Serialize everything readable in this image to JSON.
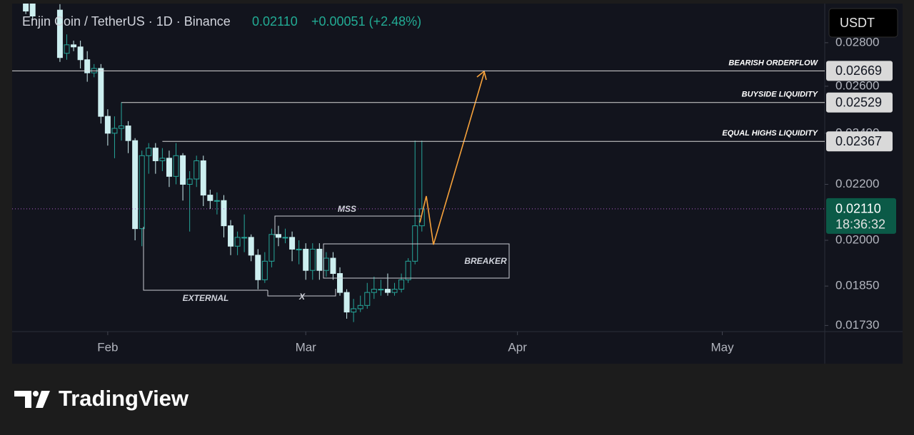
{
  "header": {
    "symbol": "Enjin Coin / TetherUS · 1D · Binance",
    "price": "0.02110",
    "change": "+0.00051 (+2.48%)"
  },
  "currency": "USDT",
  "brand": "TradingView",
  "chart_data": {
    "type": "candlestick",
    "log_scale": true,
    "up_color": "#26a69a",
    "down_color": "#cdeff0",
    "x": [
      2,
      3,
      7,
      8,
      9,
      10,
      11,
      12,
      13,
      14,
      15,
      16,
      17,
      18,
      19,
      20,
      21,
      22,
      23,
      24,
      25,
      26,
      27,
      28,
      29,
      30,
      31,
      32,
      33,
      34,
      35,
      36,
      37,
      38,
      39,
      40,
      41,
      42,
      43,
      44,
      45,
      46,
      47,
      48,
      49,
      50,
      51,
      52,
      53,
      54,
      55,
      56,
      57,
      58,
      59,
      60
    ],
    "open": [
      0.03,
      0.03,
      0.0296,
      0.0275,
      0.0279,
      0.0278,
      0.0272,
      0.0266,
      0.0268,
      0.0247,
      0.024,
      0.0242,
      0.0243,
      0.0237,
      0.0204,
      0.0231,
      0.0234,
      0.0229,
      0.023,
      0.0223,
      0.0231,
      0.022,
      0.0222,
      0.0229,
      0.0216,
      0.0214,
      0.0214,
      0.0205,
      0.0198,
      0.0201,
      0.0201,
      0.0195,
      0.0187,
      0.0193,
      0.0202,
      0.0201,
      0.0201,
      0.0197,
      0.0197,
      0.019,
      0.0197,
      0.019,
      0.0194,
      0.0189,
      0.0183,
      0.0177,
      0.0178,
      0.0179,
      0.0183,
      0.0184,
      0.0184,
      0.0183,
      0.0184,
      0.0187,
      0.0193,
      0.0205
    ],
    "high": [
      0.0301,
      0.0301,
      0.0299,
      0.0284,
      0.0281,
      0.0281,
      0.0276,
      0.027,
      0.027,
      0.025,
      0.0247,
      0.0253,
      0.0245,
      0.0238,
      0.0233,
      0.0236,
      0.0236,
      0.0234,
      0.0233,
      0.0236,
      0.0232,
      0.0225,
      0.0231,
      0.0231,
      0.0218,
      0.0217,
      0.0216,
      0.0207,
      0.0203,
      0.0209,
      0.0202,
      0.0197,
      0.0196,
      0.0204,
      0.0205,
      0.0204,
      0.0203,
      0.02,
      0.0199,
      0.0199,
      0.0199,
      0.0196,
      0.0196,
      0.0191,
      0.0184,
      0.0181,
      0.0182,
      0.0186,
      0.0188,
      0.0187,
      0.0189,
      0.0186,
      0.0189,
      0.0194,
      0.0237,
      0.0237
    ],
    "low": [
      0.0294,
      0.0291,
      0.0271,
      0.0272,
      0.0276,
      0.0268,
      0.0262,
      0.0264,
      0.0244,
      0.0235,
      0.023,
      0.0237,
      0.0232,
      0.02,
      0.0198,
      0.0224,
      0.0224,
      0.0225,
      0.0219,
      0.022,
      0.0214,
      0.0203,
      0.0219,
      0.0212,
      0.0211,
      0.0209,
      0.0201,
      0.0195,
      0.0195,
      0.0196,
      0.0193,
      0.0184,
      0.0186,
      0.0191,
      0.0198,
      0.0199,
      0.0193,
      0.0192,
      0.0187,
      0.0187,
      0.0187,
      0.0188,
      0.0187,
      0.0182,
      0.0175,
      0.0174,
      0.0177,
      0.0178,
      0.0181,
      0.0182,
      0.0182,
      0.0182,
      0.0183,
      0.0186,
      0.0192,
      0.0203
    ],
    "close": [
      0.02955,
      0.0293,
      0.0273,
      0.0279,
      0.0278,
      0.0272,
      0.0266,
      0.0268,
      0.0247,
      0.024,
      0.0242,
      0.0243,
      0.0237,
      0.0204,
      0.0231,
      0.0234,
      0.0229,
      0.023,
      0.0223,
      0.0231,
      0.022,
      0.0222,
      0.0229,
      0.0216,
      0.0214,
      0.0214,
      0.0205,
      0.0198,
      0.0201,
      0.0201,
      0.0195,
      0.0187,
      0.0193,
      0.0202,
      0.0201,
      0.0201,
      0.0197,
      0.0197,
      0.019,
      0.0197,
      0.019,
      0.0194,
      0.0189,
      0.0183,
      0.0177,
      0.0178,
      0.0179,
      0.0183,
      0.0184,
      0.0184,
      0.0183,
      0.0184,
      0.0187,
      0.0193,
      0.0205,
      0.0211
    ],
    "xlim": [
      0,
      119
    ],
    "xticks": [
      {
        "value": 14,
        "label": "Feb"
      },
      {
        "value": 43,
        "label": "Mar"
      },
      {
        "value": 74,
        "label": "Apr"
      },
      {
        "value": 104,
        "label": "May"
      }
    ],
    "ylim": [
      0.01712,
      0.02993
    ],
    "yticks": [
      {
        "value": 0.028,
        "label": "0.02800"
      },
      {
        "value": 0.026,
        "label": "0.02600"
      },
      {
        "value": 0.024,
        "label": "0.02400"
      },
      {
        "value": 0.022,
        "label": "0.02200"
      },
      {
        "value": 0.02,
        "label": "0.02000"
      },
      {
        "value": 0.0185,
        "label": "0.01850"
      },
      {
        "value": 0.0173,
        "label": "0.01730"
      }
    ],
    "levels": [
      {
        "name": "BEARISH ORDERFLOW",
        "value": 0.02669
      },
      {
        "name": "BUYSIDE LIQUIDITY",
        "value": 0.02529
      },
      {
        "name": "EQUAL HIGHS LIQUIDITY",
        "value": 0.02367
      }
    ],
    "last_price": {
      "value": 0.0211,
      "label": "0.02110",
      "countdown": "18:36:32"
    },
    "annotations": [
      "MSS",
      "BREAKER",
      "EXTERNAL",
      "X"
    ]
  }
}
